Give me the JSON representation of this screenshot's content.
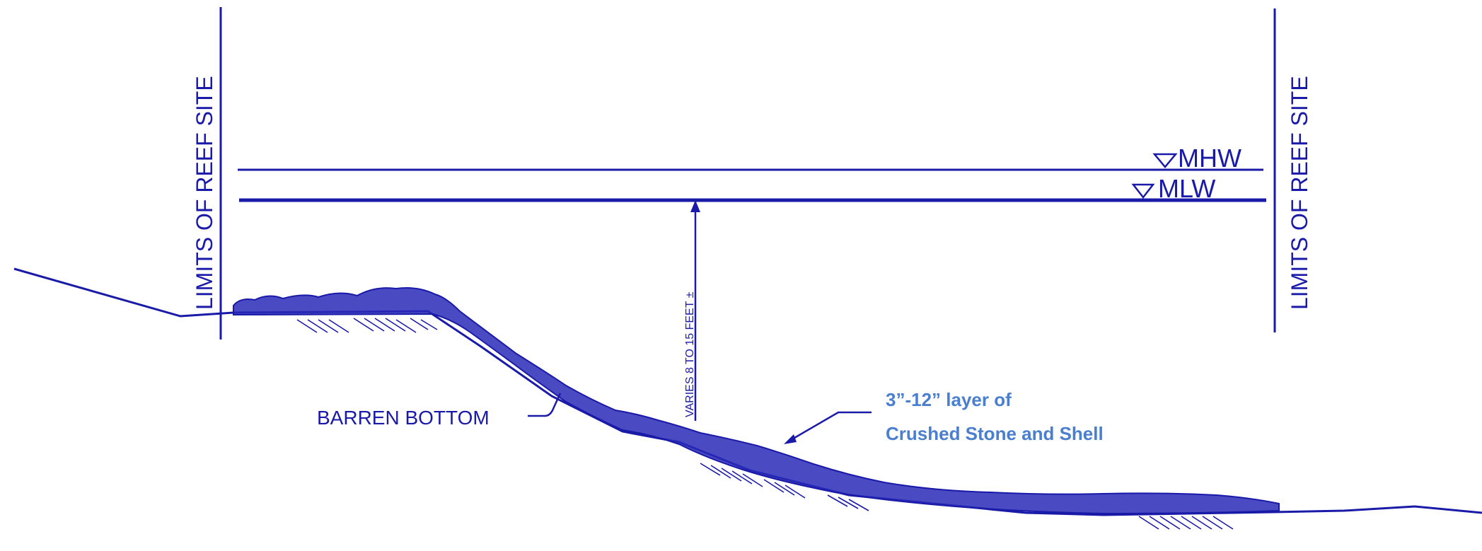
{
  "labels": {
    "limit_left": "LIMITS OF REEF SITE",
    "limit_right": "LIMITS OF REEF SITE",
    "mhw": "MHW",
    "mlw": "MLW",
    "depth": "VARIES 8 TO 15 FEET ±",
    "barren_bottom": "BARREN BOTTOM",
    "layer_line1": "3”-12” layer of",
    "layer_line2": "Crushed Stone and Shell"
  },
  "colors": {
    "ink": "#1a1aa8",
    "note": "#4a7fd0"
  }
}
